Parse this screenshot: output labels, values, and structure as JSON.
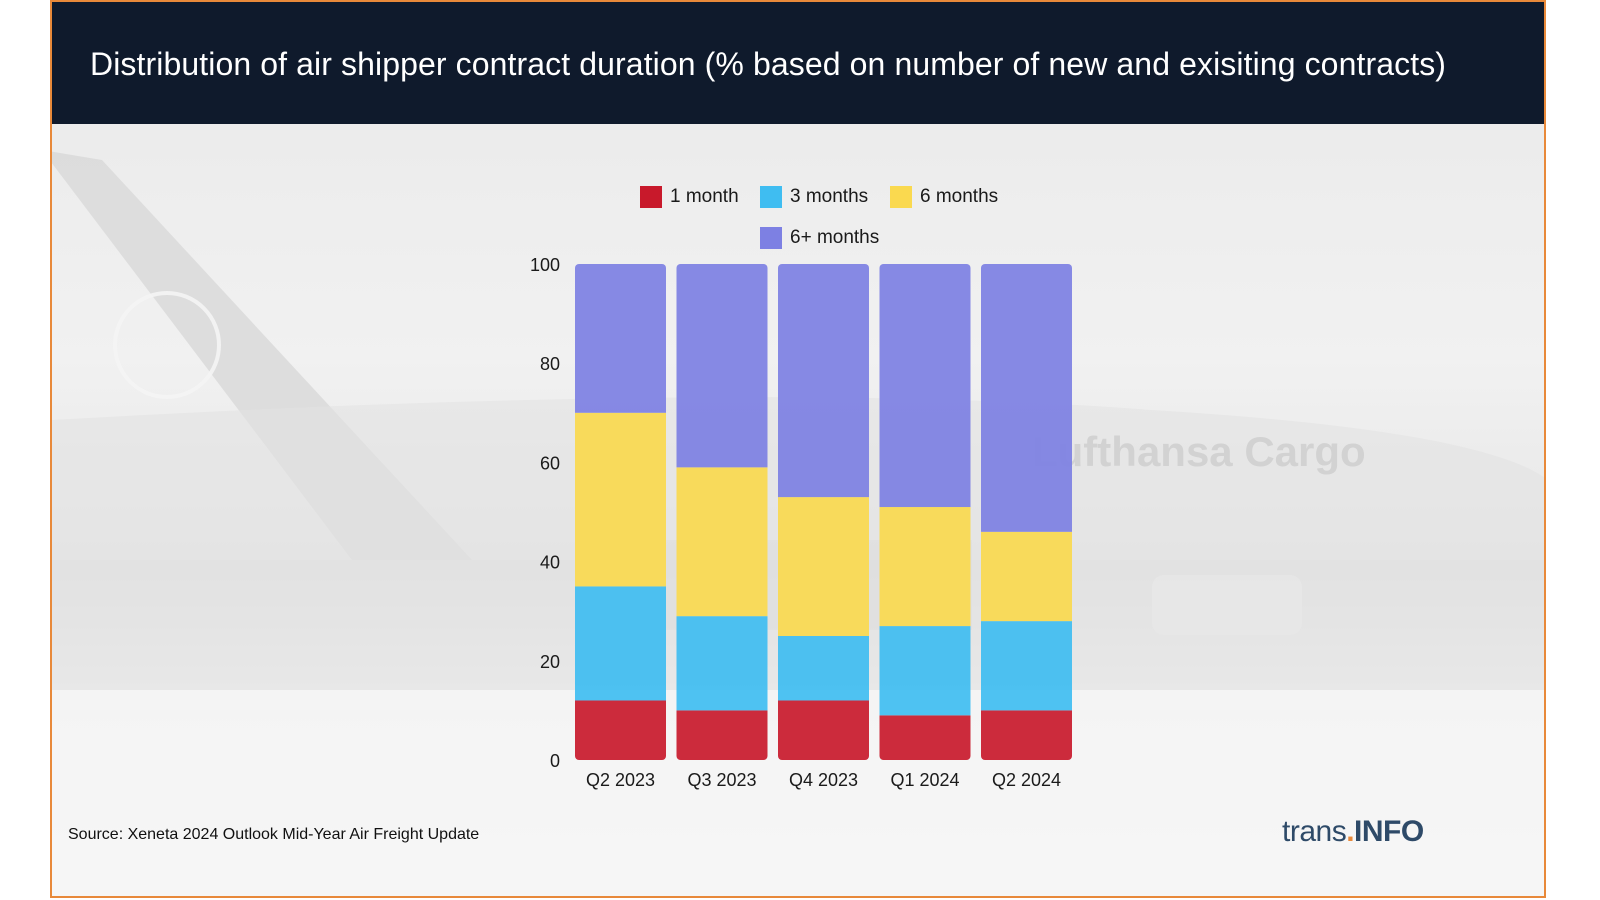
{
  "header": {
    "title": "Distribution of air shipper contract duration (% based on number of new and exisiting contracts)"
  },
  "background": {
    "watermark_text": "Lufthansa Cargo"
  },
  "chart_data": {
    "type": "bar",
    "stacked": true,
    "categories": [
      "Q2 2023",
      "Q3 2023",
      "Q4 2023",
      "Q1 2024",
      "Q2 2024"
    ],
    "series": [
      {
        "name": "1 month",
        "color": "#c8192b",
        "values": [
          12,
          10,
          12,
          9,
          10
        ]
      },
      {
        "name": "3 months",
        "color": "#3fbdf1",
        "values": [
          23,
          19,
          13,
          18,
          18
        ]
      },
      {
        "name": "6 months",
        "color": "#fad94f",
        "values": [
          35,
          30,
          28,
          24,
          18
        ]
      },
      {
        "name": "6+ months",
        "color": "#7d80e3",
        "values": [
          30,
          41,
          47,
          49,
          54
        ]
      }
    ],
    "ylim": [
      0,
      100
    ],
    "yticks": [
      "0",
      "20",
      "40",
      "60",
      "80",
      "100"
    ],
    "grid": false,
    "legend_position": "top"
  },
  "footer": {
    "source": "Source: Xeneta 2024 Outlook Mid-Year Air Freight Update",
    "brand_part1": "trans",
    "brand_dot": ".",
    "brand_part2": "INFO"
  }
}
